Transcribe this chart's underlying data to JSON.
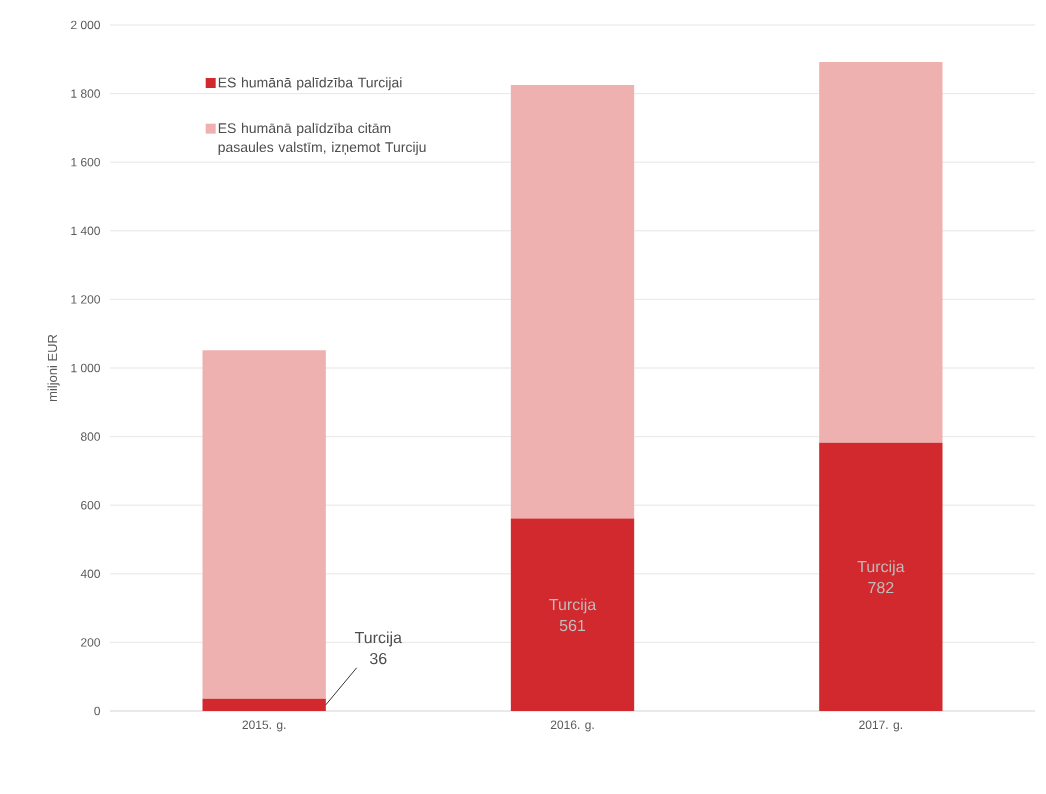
{
  "chart_data": {
    "type": "bar",
    "stacked": true,
    "ylabel": "miljoni EUR",
    "categories": [
      "2015. g.",
      "2016. g.",
      "2017. g."
    ],
    "series": [
      {
        "name": "ES humānā palīdzība Turcijai",
        "color": "#d2292f",
        "values": [
          36,
          561,
          782
        ],
        "value_labels": [
          "Turcija 36",
          "Turcija 561",
          "Turcija 782"
        ]
      },
      {
        "name": "ES humānā palīdzība citām pasaules valstīm, izņemot Turciju",
        "color": "#efb0b0",
        "values": [
          1016,
          1264,
          1110
        ]
      }
    ],
    "ylim": [
      0,
      2000
    ],
    "yticks": [
      0,
      200,
      400,
      600,
      800,
      {
        "value": 1000,
        "label": "1 000"
      },
      {
        "value": 1200,
        "label": "1 200"
      },
      {
        "value": 1400,
        "label": "1 400"
      },
      {
        "value": 1600,
        "label": "1 600"
      },
      {
        "value": 1800,
        "label": "1 800"
      },
      {
        "value": 2000,
        "label": "2 000"
      }
    ],
    "grid": "y",
    "legend": "top left"
  }
}
